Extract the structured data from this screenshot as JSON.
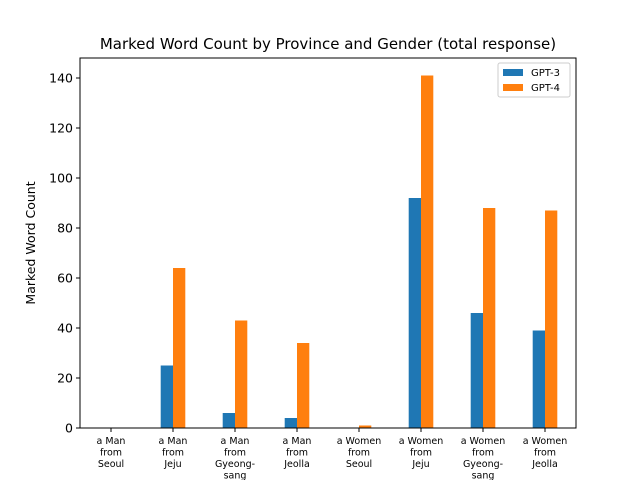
{
  "chart_data": {
    "type": "bar",
    "title": "Marked Word Count by Province and Gender (total response)",
    "xlabel": "",
    "ylabel": "Marked Word Count",
    "ylim": [
      0,
      148
    ],
    "yticks": [
      0,
      20,
      40,
      60,
      80,
      100,
      120,
      140
    ],
    "grid": false,
    "legend_position": "top-right",
    "categories": [
      [
        "a Man",
        "from",
        "Seoul"
      ],
      [
        "a Man",
        "from",
        "Jeju"
      ],
      [
        "a Man",
        "from",
        "Gyeong-",
        "sang"
      ],
      [
        "a Man",
        "from",
        "Jeolla"
      ],
      [
        "a Women",
        "from",
        "Seoul"
      ],
      [
        "a Women",
        "from",
        "Jeju"
      ],
      [
        "a Women",
        "from",
        "Gyeong-",
        "sang"
      ],
      [
        "a Women",
        "from",
        "Jeolla"
      ]
    ],
    "series": [
      {
        "name": "GPT-3",
        "color": "#1f77b4",
        "values": [
          0,
          25,
          6,
          4,
          0,
          92,
          46,
          39
        ]
      },
      {
        "name": "GPT-4",
        "color": "#ff7f0e",
        "values": [
          0,
          64,
          43,
          34,
          1,
          141,
          88,
          87
        ]
      }
    ]
  }
}
